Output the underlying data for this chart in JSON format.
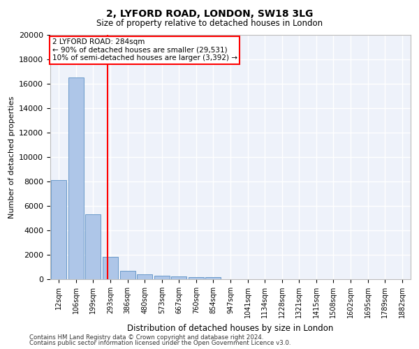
{
  "title1": "2, LYFORD ROAD, LONDON, SW18 3LG",
  "title2": "Size of property relative to detached houses in London",
  "xlabel": "Distribution of detached houses by size in London",
  "ylabel": "Number of detached properties",
  "bar_labels": [
    "12sqm",
    "106sqm",
    "199sqm",
    "293sqm",
    "386sqm",
    "480sqm",
    "573sqm",
    "667sqm",
    "760sqm",
    "854sqm",
    "947sqm",
    "1041sqm",
    "1134sqm",
    "1228sqm",
    "1321sqm",
    "1415sqm",
    "1508sqm",
    "1602sqm",
    "1695sqm",
    "1789sqm",
    "1882sqm"
  ],
  "bar_values": [
    8100,
    16500,
    5300,
    1850,
    700,
    380,
    290,
    230,
    200,
    190,
    0,
    0,
    0,
    0,
    0,
    0,
    0,
    0,
    0,
    0,
    0
  ],
  "bar_color": "#aec6e8",
  "bar_edge_color": "#5a8fc3",
  "vline_x": 2.85,
  "vline_color": "red",
  "annotation_text": "2 LYFORD ROAD: 284sqm\n← 90% of detached houses are smaller (29,531)\n10% of semi-detached houses are larger (3,392) →",
  "annotation_box_color": "white",
  "annotation_box_edge": "red",
  "ylim": [
    0,
    20000
  ],
  "yticks": [
    0,
    2000,
    4000,
    6000,
    8000,
    10000,
    12000,
    14000,
    16000,
    18000,
    20000
  ],
  "footer1": "Contains HM Land Registry data © Crown copyright and database right 2024.",
  "footer2": "Contains public sector information licensed under the Open Government Licence v3.0.",
  "plot_bg_color": "#eef2fa"
}
